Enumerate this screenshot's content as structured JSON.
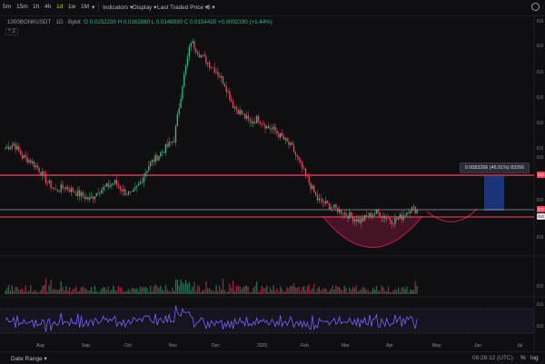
{
  "toolbar": {
    "intervals": [
      "5m",
      "15m",
      "1h",
      "4h",
      "1d",
      "1w",
      "1M"
    ],
    "active_interval": "1d",
    "indicators": "Indicators",
    "display": "Display",
    "price_type": "Last Traded Price"
  },
  "legend": {
    "symbol": "1000BONKUSDT · 1D · Bybit",
    "ohlc": "O 0.0152230  H 0.0162880  L 0.0148930  C 0.0154420 +0.0002190 (+1.44%)",
    "collapse": "2"
  },
  "measure_tooltip": "0.0083266 (46.91%) 83266",
  "price_tags": [
    "0.0",
    "0.0",
    "0.0"
  ],
  "bottom": {
    "date_range": "Date Range",
    "clock": "08:28:12 (UTC)",
    "percent": "%",
    "log": "log"
  },
  "colors": {
    "up": "#2ebd85",
    "down": "#f6465d",
    "resistance": "#f6465d",
    "rsi": "#7b61ff",
    "accent": "#f0b90b"
  },
  "chart_data": {
    "type": "candlestick",
    "x_labels": [
      "Aug",
      "Sep",
      "Oct",
      "Nov",
      "Dec",
      "2025",
      "Feb",
      "Mar",
      "Apr",
      "May",
      "Jun",
      "Jul"
    ],
    "close_series": [
      0.03,
      0.031,
      0.028,
      0.027,
      0.025,
      0.022,
      0.02,
      0.021,
      0.02,
      0.019,
      0.018,
      0.02,
      0.021,
      0.022,
      0.02,
      0.019,
      0.022,
      0.026,
      0.028,
      0.03,
      0.032,
      0.045,
      0.055,
      0.052,
      0.05,
      0.048,
      0.045,
      0.04,
      0.038,
      0.036,
      0.037,
      0.035,
      0.034,
      0.032,
      0.03,
      0.026,
      0.022,
      0.018,
      0.017,
      0.016,
      0.015,
      0.014,
      0.013,
      0.014,
      0.015,
      0.014,
      0.013,
      0.014,
      0.016,
      0.0154
    ],
    "price_lines": [
      0.0237,
      0.0167,
      0.0152
    ],
    "rsi_levels": [
      70,
      50,
      30
    ]
  }
}
